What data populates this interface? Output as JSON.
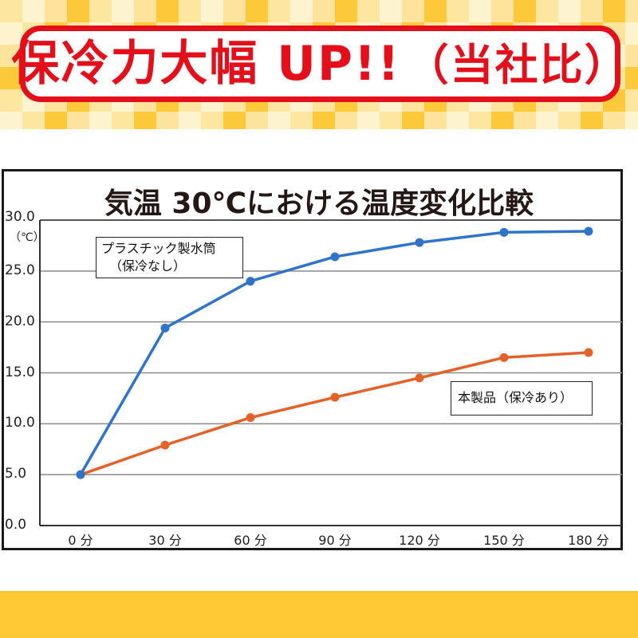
{
  "banner": {
    "headline": "保冷力大幅 UP!!",
    "headline_suffix": "（当社比）",
    "colors": {
      "text": "#e3101c",
      "border": "#e3101c",
      "pattern_dark": "#fcc93a",
      "pattern_light": "#fde7a0"
    }
  },
  "chart": {
    "title": "気温 30℃における温度変化比較",
    "y_unit": "（℃）",
    "y_ticks": [
      "30.0",
      "25.0",
      "20.0",
      "15.0",
      "10.0",
      "5.0",
      "0.0"
    ],
    "x_ticks": [
      "0 分",
      "30 分",
      "60 分",
      "90 分",
      "120 分",
      "150 分",
      "180 分"
    ],
    "legend_blue_line1": "プラスチック製水筒",
    "legend_blue_line2": "（保冷なし）",
    "legend_orange": "本製品（保冷あり）"
  },
  "chart_data": {
    "type": "line",
    "title": "気温 30℃における温度変化比較",
    "xlabel": "",
    "ylabel": "（℃）",
    "categories": [
      "0 分",
      "30 分",
      "60 分",
      "90 分",
      "120 分",
      "150 分",
      "180 分"
    ],
    "x": [
      0,
      30,
      60,
      90,
      120,
      150,
      180
    ],
    "series": [
      {
        "name": "プラスチック製水筒（保冷なし）",
        "color": "#2f74c9",
        "values": [
          5.0,
          19.4,
          24.0,
          26.4,
          27.8,
          28.8,
          28.9
        ]
      },
      {
        "name": "本製品（保冷あり）",
        "color": "#e2622a",
        "values": [
          5.0,
          7.9,
          10.6,
          12.6,
          14.5,
          16.5,
          17.0
        ]
      }
    ],
    "ylim": [
      0,
      30
    ],
    "yticks": [
      0,
      5,
      10,
      15,
      20,
      25,
      30
    ],
    "grid": true,
    "legend_position": "inline labels"
  },
  "footer": {
    "band_color": "#fec934"
  }
}
